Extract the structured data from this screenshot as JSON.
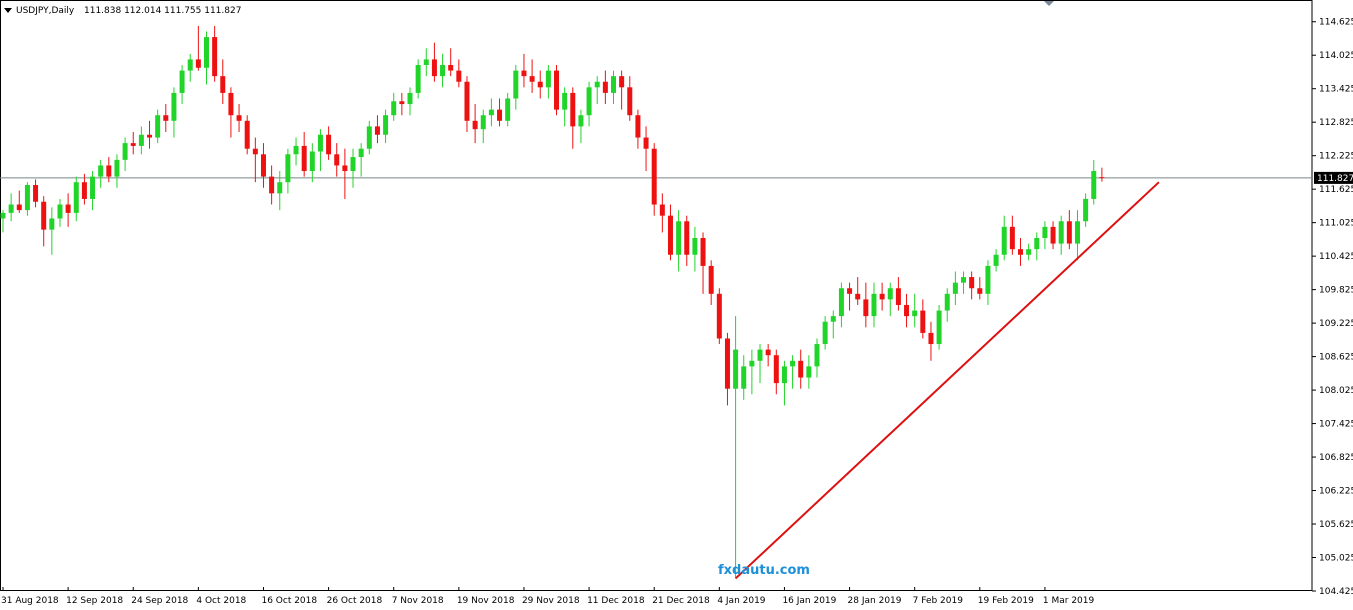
{
  "header": {
    "symbol": "USDJPY,Daily",
    "ohlc": "111.838 112.014 111.755 111.827"
  },
  "watermark": "fxdautu.com",
  "colors": {
    "bull": "#21d42a",
    "bear": "#ee1111",
    "trendline": "#dd1111",
    "grid_frame": "#000000",
    "price_line": "#778888",
    "price_tag_bg": "#000000",
    "watermark": "#1e90d8"
  },
  "chart_data": {
    "type": "candlestick",
    "symbol": "USDJPY",
    "timeframe": "Daily",
    "y_range": [
      104.425,
      114.925
    ],
    "y_ticks": [
      "114.625",
      "114.025",
      "113.425",
      "112.825",
      "112.225",
      "111.625",
      "111.025",
      "110.425",
      "109.825",
      "109.225",
      "108.625",
      "108.025",
      "107.425",
      "106.825",
      "106.225",
      "105.625",
      "105.025",
      "104.425"
    ],
    "x_tick_labels": [
      "31 Aug 2018",
      "12 Sep 2018",
      "24 Sep 2018",
      "4 Oct 2018",
      "16 Oct 2018",
      "26 Oct 2018",
      "7 Nov 2018",
      "19 Nov 2018",
      "29 Nov 2018",
      "11 Dec 2018",
      "21 Dec 2018",
      "4 Jan 2019",
      "16 Jan 2019",
      "28 Jan 2019",
      "7 Feb 2019",
      "19 Feb 2019",
      "1 Mar 2019"
    ],
    "x_tick_index": [
      0,
      8,
      16,
      24,
      32,
      40,
      48,
      56,
      64,
      72,
      80,
      88,
      96,
      104,
      112,
      120,
      128
    ],
    "current_price": "111.827",
    "candles": [
      [
        111.1,
        111.25,
        110.85,
        111.2
      ],
      [
        111.2,
        111.55,
        111.05,
        111.35
      ],
      [
        111.35,
        111.6,
        111.2,
        111.25
      ],
      [
        111.25,
        111.75,
        111.15,
        111.7
      ],
      [
        111.7,
        111.8,
        111.3,
        111.4
      ],
      [
        111.4,
        111.5,
        110.6,
        110.9
      ],
      [
        110.9,
        111.3,
        110.45,
        111.1
      ],
      [
        111.1,
        111.45,
        110.95,
        111.35
      ],
      [
        111.35,
        111.55,
        110.95,
        111.2
      ],
      [
        111.2,
        111.85,
        111.05,
        111.75
      ],
      [
        111.75,
        111.9,
        111.35,
        111.45
      ],
      [
        111.45,
        111.95,
        111.25,
        111.85
      ],
      [
        111.85,
        112.15,
        111.65,
        112.05
      ],
      [
        112.05,
        112.2,
        111.75,
        111.85
      ],
      [
        111.85,
        112.25,
        111.65,
        112.15
      ],
      [
        112.15,
        112.55,
        111.95,
        112.45
      ],
      [
        112.45,
        112.65,
        112.25,
        112.4
      ],
      [
        112.4,
        112.75,
        112.25,
        112.6
      ],
      [
        112.6,
        112.85,
        112.35,
        112.55
      ],
      [
        112.55,
        113.05,
        112.45,
        112.95
      ],
      [
        112.95,
        113.15,
        112.65,
        112.85
      ],
      [
        112.85,
        113.45,
        112.55,
        113.35
      ],
      [
        113.35,
        113.85,
        113.15,
        113.75
      ],
      [
        113.75,
        114.05,
        113.55,
        113.95
      ],
      [
        113.95,
        114.55,
        113.75,
        113.8
      ],
      [
        113.8,
        114.45,
        113.5,
        114.35
      ],
      [
        114.35,
        114.55,
        113.55,
        113.65
      ],
      [
        113.65,
        113.95,
        113.15,
        113.35
      ],
      [
        113.35,
        113.45,
        112.55,
        112.95
      ],
      [
        112.95,
        113.15,
        112.65,
        112.85
      ],
      [
        112.85,
        112.95,
        112.25,
        112.35
      ],
      [
        112.35,
        112.55,
        111.75,
        112.25
      ],
      [
        112.25,
        112.45,
        111.65,
        111.85
      ],
      [
        111.85,
        112.05,
        111.35,
        111.55
      ],
      [
        111.55,
        111.95,
        111.25,
        111.75
      ],
      [
        111.75,
        112.35,
        111.55,
        112.25
      ],
      [
        112.25,
        112.55,
        112.05,
        112.4
      ],
      [
        112.4,
        112.65,
        111.85,
        111.95
      ],
      [
        111.95,
        112.45,
        111.75,
        112.3
      ],
      [
        112.3,
        112.7,
        111.95,
        112.6
      ],
      [
        112.6,
        112.75,
        112.15,
        112.25
      ],
      [
        112.25,
        112.45,
        111.85,
        112.05
      ],
      [
        112.05,
        112.35,
        111.45,
        111.95
      ],
      [
        111.95,
        112.35,
        111.65,
        112.2
      ],
      [
        112.2,
        112.45,
        111.85,
        112.35
      ],
      [
        112.35,
        112.85,
        112.25,
        112.75
      ],
      [
        112.75,
        112.95,
        112.45,
        112.6
      ],
      [
        112.6,
        113.05,
        112.45,
        112.95
      ],
      [
        112.95,
        113.35,
        112.85,
        113.2
      ],
      [
        113.2,
        113.35,
        112.95,
        113.15
      ],
      [
        113.15,
        113.45,
        112.95,
        113.35
      ],
      [
        113.35,
        113.95,
        113.25,
        113.85
      ],
      [
        113.85,
        114.15,
        113.65,
        113.95
      ],
      [
        113.95,
        114.25,
        113.55,
        113.65
      ],
      [
        113.65,
        114.05,
        113.45,
        113.85
      ],
      [
        113.85,
        114.15,
        113.65,
        113.75
      ],
      [
        113.75,
        113.95,
        113.45,
        113.55
      ],
      [
        113.55,
        113.65,
        112.65,
        112.85
      ],
      [
        112.85,
        113.15,
        112.45,
        112.7
      ],
      [
        112.7,
        113.05,
        112.45,
        112.95
      ],
      [
        112.95,
        113.25,
        112.75,
        113.05
      ],
      [
        113.05,
        113.25,
        112.75,
        112.85
      ],
      [
        112.85,
        113.35,
        112.75,
        113.25
      ],
      [
        113.25,
        113.85,
        113.05,
        113.75
      ],
      [
        113.75,
        114.05,
        113.45,
        113.65
      ],
      [
        113.65,
        113.95,
        113.35,
        113.55
      ],
      [
        113.55,
        113.75,
        113.25,
        113.45
      ],
      [
        113.45,
        113.85,
        113.25,
        113.75
      ],
      [
        113.75,
        113.85,
        112.95,
        113.05
      ],
      [
        113.05,
        113.45,
        112.75,
        113.35
      ],
      [
        113.35,
        113.45,
        112.35,
        112.75
      ],
      [
        112.75,
        113.05,
        112.45,
        112.95
      ],
      [
        112.95,
        113.55,
        112.75,
        113.45
      ],
      [
        113.45,
        113.65,
        113.15,
        113.55
      ],
      [
        113.55,
        113.75,
        113.15,
        113.35
      ],
      [
        113.35,
        113.75,
        113.15,
        113.65
      ],
      [
        113.65,
        113.75,
        113.05,
        113.45
      ],
      [
        113.45,
        113.65,
        112.85,
        112.95
      ],
      [
        112.95,
        113.05,
        112.35,
        112.55
      ],
      [
        112.55,
        112.75,
        111.95,
        112.35
      ],
      [
        112.35,
        112.45,
        111.15,
        111.35
      ],
      [
        111.35,
        111.55,
        110.85,
        111.15
      ],
      [
        111.15,
        111.35,
        110.35,
        110.45
      ],
      [
        110.45,
        111.25,
        110.15,
        111.05
      ],
      [
        111.05,
        111.15,
        110.25,
        110.45
      ],
      [
        110.45,
        110.95,
        110.15,
        110.75
      ],
      [
        110.75,
        110.85,
        109.75,
        110.25
      ],
      [
        110.25,
        110.35,
        109.55,
        109.75
      ],
      [
        109.75,
        109.85,
        108.85,
        108.95
      ],
      [
        108.95,
        109.05,
        107.75,
        108.05
      ],
      [
        108.05,
        109.35,
        104.65,
        108.75
      ],
      [
        108.05,
        108.65,
        107.85,
        108.45
      ],
      [
        108.45,
        108.75,
        107.95,
        108.55
      ],
      [
        108.55,
        108.85,
        108.15,
        108.75
      ],
      [
        108.75,
        108.85,
        108.45,
        108.65
      ],
      [
        108.65,
        108.75,
        107.95,
        108.15
      ],
      [
        108.15,
        108.55,
        107.75,
        108.45
      ],
      [
        108.45,
        108.65,
        108.05,
        108.55
      ],
      [
        108.55,
        108.75,
        108.05,
        108.25
      ],
      [
        108.25,
        108.65,
        108.05,
        108.45
      ],
      [
        108.45,
        108.95,
        108.25,
        108.85
      ],
      [
        108.85,
        109.35,
        108.75,
        109.25
      ],
      [
        109.25,
        109.45,
        108.95,
        109.35
      ],
      [
        109.35,
        109.95,
        109.15,
        109.85
      ],
      [
        109.85,
        109.95,
        109.45,
        109.75
      ],
      [
        109.75,
        110.05,
        109.55,
        109.65
      ],
      [
        109.65,
        109.95,
        109.15,
        109.35
      ],
      [
        109.35,
        109.95,
        109.15,
        109.75
      ],
      [
        109.75,
        109.95,
        109.45,
        109.65
      ],
      [
        109.65,
        109.95,
        109.35,
        109.85
      ],
      [
        109.85,
        110.05,
        109.45,
        109.55
      ],
      [
        109.55,
        109.75,
        109.15,
        109.35
      ],
      [
        109.35,
        109.75,
        109.15,
        109.45
      ],
      [
        109.45,
        109.65,
        108.95,
        109.05
      ],
      [
        109.05,
        109.25,
        108.55,
        108.85
      ],
      [
        108.85,
        109.55,
        108.75,
        109.45
      ],
      [
        109.45,
        109.85,
        109.25,
        109.75
      ],
      [
        109.75,
        110.15,
        109.55,
        109.95
      ],
      [
        109.95,
        110.15,
        109.75,
        110.05
      ],
      [
        110.05,
        110.15,
        109.65,
        109.85
      ],
      [
        109.85,
        110.05,
        109.65,
        109.75
      ],
      [
        109.75,
        110.35,
        109.55,
        110.25
      ],
      [
        110.25,
        110.55,
        110.15,
        110.45
      ],
      [
        110.45,
        111.15,
        110.35,
        110.95
      ],
      [
        110.95,
        111.15,
        110.45,
        110.55
      ],
      [
        110.55,
        110.75,
        110.25,
        110.45
      ],
      [
        110.45,
        110.65,
        110.35,
        110.55
      ],
      [
        110.55,
        110.85,
        110.35,
        110.75
      ],
      [
        110.75,
        111.05,
        110.55,
        110.95
      ],
      [
        110.95,
        111.05,
        110.55,
        110.65
      ],
      [
        110.65,
        111.15,
        110.45,
        111.05
      ],
      [
        111.05,
        111.25,
        110.55,
        110.65
      ],
      [
        110.65,
        111.25,
        110.35,
        111.05
      ],
      [
        111.05,
        111.55,
        110.95,
        111.45
      ],
      [
        111.45,
        112.15,
        111.35,
        111.95
      ],
      [
        111.84,
        112.01,
        111.76,
        111.83
      ]
    ],
    "trendline": {
      "from": [
        90,
        104.65
      ],
      "to": [
        142,
        111.75
      ]
    }
  }
}
